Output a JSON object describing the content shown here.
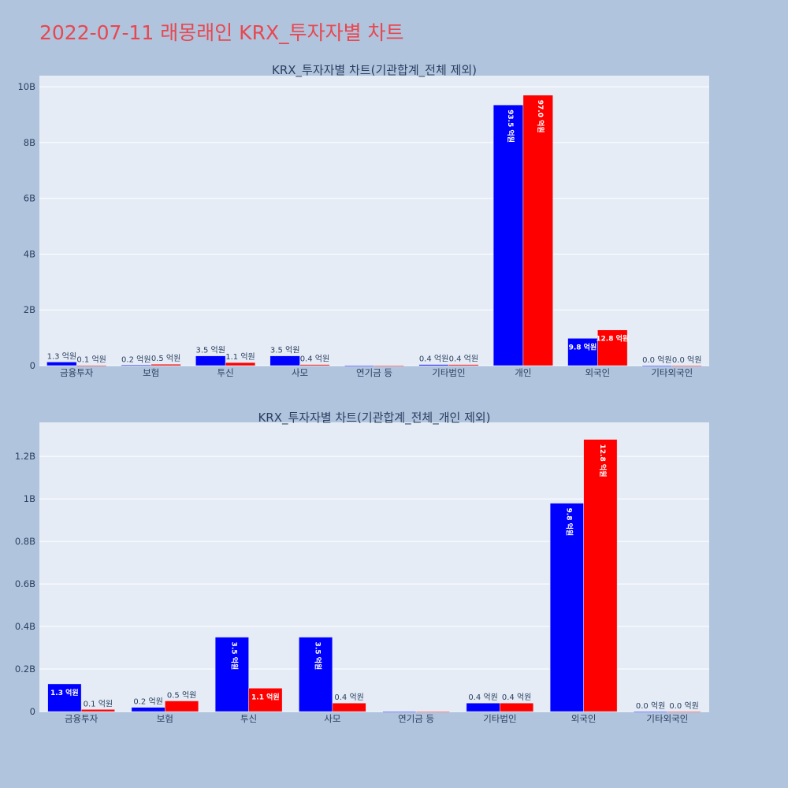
{
  "page": {
    "title": "2022-07-11 래몽래인 KRX_투자자별 차트",
    "colors": {
      "background": "#b0c4de",
      "plot_bg": "#e5ecf6",
      "title": "#e8474f",
      "series_1": "#0000ff",
      "series_2": "#ff0000"
    }
  },
  "chart_data": [
    {
      "type": "bar",
      "title": "KRX_투자자별 차트(기관합계_전체 제외)",
      "categories": [
        "금융투자",
        "보험",
        "투신",
        "사모",
        "연기금 등",
        "기타법인",
        "개인",
        "외국인",
        "기타외국인"
      ],
      "series": [
        {
          "values": [
            130000000,
            20000000,
            350000000,
            350000000,
            0,
            40000000,
            9350000000,
            980000000,
            0
          ],
          "labels": [
            "1.3 억원",
            "0.2 억원",
            "3.5 억원",
            "3.5 억원",
            "",
            "0.4 억원",
            "93.5 억원",
            "9.8 억원",
            "0.0 억원"
          ]
        },
        {
          "values": [
            10000000,
            50000000,
            110000000,
            40000000,
            0,
            40000000,
            9700000000,
            1280000000,
            0
          ],
          "labels": [
            "0.1 억원",
            "0.5 억원",
            "1.1 억원",
            "0.4 억원",
            "",
            "0.4 억원",
            "97.0 억원",
            "12.8 억원",
            "0.0 억원"
          ]
        }
      ],
      "ylim": [
        0,
        10400000000
      ],
      "yticks": [
        0,
        2000000000,
        4000000000,
        6000000000,
        8000000000,
        10000000000
      ],
      "ytick_labels": [
        "0",
        "2B",
        "4B",
        "6B",
        "8B",
        "10B"
      ],
      "grid": true,
      "xlabel": "",
      "ylabel": ""
    },
    {
      "type": "bar",
      "title": "KRX_투자자별 차트(기관합계_전체_개인 제외)",
      "categories": [
        "금융투자",
        "보험",
        "투신",
        "사모",
        "연기금 등",
        "기타법인",
        "외국인",
        "기타외국인"
      ],
      "series": [
        {
          "values": [
            130000000,
            20000000,
            350000000,
            350000000,
            0,
            40000000,
            980000000,
            0
          ],
          "labels": [
            "1.3 억원",
            "0.2 억원",
            "3.5 억원",
            "3.5 억원",
            "",
            "0.4 억원",
            "9.8 억원",
            "0.0 억원"
          ]
        },
        {
          "values": [
            10000000,
            50000000,
            110000000,
            40000000,
            0,
            40000000,
            1280000000,
            0
          ],
          "labels": [
            "0.1 억원",
            "0.5 억원",
            "1.1 억원",
            "0.4 억원",
            "",
            "0.4 억원",
            "12.8 억원",
            "0.0 억원"
          ]
        }
      ],
      "ylim": [
        0,
        1360000000
      ],
      "yticks": [
        0,
        200000000,
        400000000,
        600000000,
        800000000,
        1000000000,
        1200000000
      ],
      "ytick_labels": [
        "0",
        "0.2B",
        "0.4B",
        "0.6B",
        "0.8B",
        "1B",
        "1.2B"
      ],
      "grid": true,
      "xlabel": "",
      "ylabel": ""
    }
  ]
}
